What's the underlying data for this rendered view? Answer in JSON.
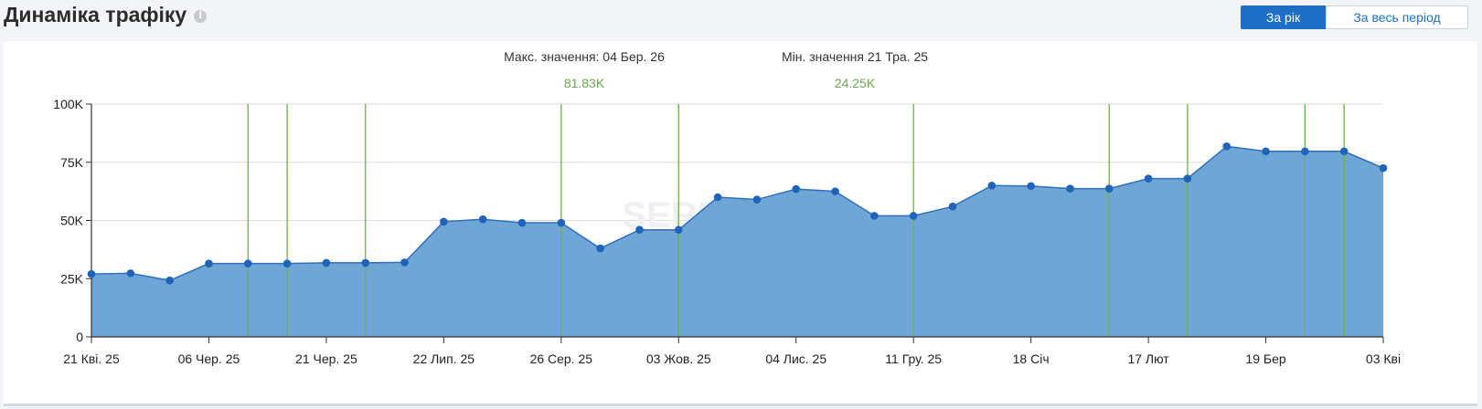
{
  "header": {
    "title": "Динаміка трафіку",
    "info_icon": "info-icon"
  },
  "period_toggle": {
    "active_label": "За рік",
    "inactive_label": "За весь період"
  },
  "colors": {
    "area": "#6fa6d6",
    "line": "#2f6fbe",
    "marker": "#1f64b8",
    "event_line": "#6db33f",
    "max_min_value": "#6aa84f",
    "accent": "#1f6fc7"
  },
  "watermark": "SERPSTAT",
  "chart_data": {
    "type": "area",
    "y_unit": "visits",
    "ylim": [
      0,
      100000
    ],
    "y_ticks": [
      0,
      25000,
      50000,
      75000,
      100000
    ],
    "y_tick_labels": [
      "0",
      "25K",
      "50K",
      "75K",
      "100K"
    ],
    "x_tick_labels": [
      "21 Кві. 25",
      "06 Чер. 25",
      "21 Чер. 25",
      "22 Лип. 25",
      "26 Сер. 25",
      "03 Жов. 25",
      "04 Лис. 25",
      "11 Гру. 25",
      "18 Січ",
      "17 Лют",
      "19 Бер",
      "03 Кві"
    ],
    "series": [
      {
        "values": [
          27000,
          27300,
          24250,
          31500,
          31500,
          31500,
          31800,
          31800,
          32000,
          49500,
          50500,
          49000,
          49000,
          38000,
          46000,
          46000,
          60000,
          59000,
          63500,
          62500,
          52000,
          52000,
          56000,
          65000,
          64800,
          63700,
          63700,
          68000,
          68000,
          81830,
          79700,
          79700,
          79700,
          72500
        ]
      }
    ],
    "event_markers_at_point_index": [
      4,
      5,
      7,
      12,
      15,
      21,
      26,
      28,
      31,
      32
    ],
    "annotations": [
      {
        "label": "Макс. значення: 04 Бер. 26",
        "value": "81.83K"
      },
      {
        "label": "Мін. значення 21 Тра. 25",
        "value": "24.25K"
      }
    ],
    "grid": true
  }
}
